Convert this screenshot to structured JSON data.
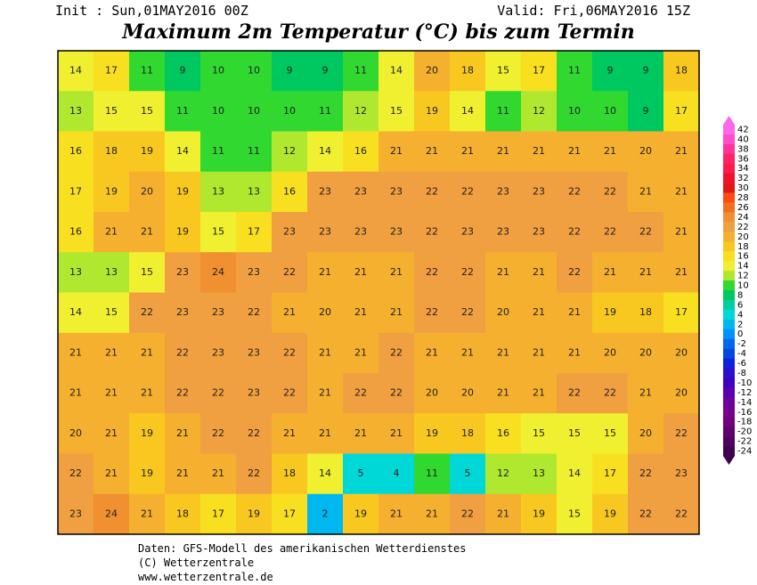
{
  "header": {
    "init": "Init : Sun,01MAY2016 00Z",
    "valid": "Valid: Fri,06MAY2016 15Z",
    "title": "Maximum 2m Temperatur (°C) bis zum Termin"
  },
  "map": {
    "rows": [
      [
        14,
        17,
        11,
        9,
        10,
        10,
        9,
        9,
        11,
        14,
        20,
        18,
        15,
        17,
        11,
        9,
        9,
        18
      ],
      [
        13,
        15,
        15,
        11,
        10,
        10,
        10,
        11,
        12,
        15,
        19,
        14,
        11,
        12,
        10,
        10,
        9,
        17
      ],
      [
        16,
        18,
        19,
        14,
        11,
        11,
        12,
        14,
        16,
        21,
        21,
        21,
        21,
        21,
        21,
        21,
        20,
        21
      ],
      [
        17,
        19,
        20,
        19,
        13,
        13,
        16,
        23,
        23,
        23,
        22,
        22,
        23,
        23,
        22,
        22,
        21,
        21
      ],
      [
        16,
        21,
        21,
        19,
        15,
        17,
        23,
        23,
        23,
        23,
        22,
        23,
        23,
        23,
        22,
        22,
        22,
        21
      ],
      [
        13,
        13,
        15,
        23,
        24,
        23,
        22,
        21,
        21,
        21,
        22,
        22,
        21,
        21,
        22,
        21,
        21,
        21
      ],
      [
        14,
        15,
        22,
        23,
        23,
        22,
        21,
        20,
        21,
        21,
        22,
        22,
        20,
        21,
        21,
        19,
        18,
        17
      ],
      [
        21,
        21,
        21,
        22,
        23,
        23,
        22,
        21,
        21,
        22,
        21,
        21,
        21,
        21,
        21,
        20,
        20,
        20
      ],
      [
        21,
        21,
        21,
        22,
        22,
        23,
        22,
        21,
        22,
        22,
        20,
        20,
        21,
        21,
        22,
        22,
        21,
        20
      ],
      [
        20,
        21,
        19,
        21,
        22,
        22,
        21,
        21,
        21,
        21,
        19,
        18,
        16,
        15,
        15,
        15,
        20,
        22
      ],
      [
        22,
        21,
        19,
        21,
        21,
        22,
        18,
        14,
        5,
        4,
        11,
        5,
        12,
        13,
        14,
        17,
        22,
        23
      ],
      [
        23,
        24,
        21,
        18,
        17,
        19,
        17,
        2,
        19,
        21,
        21,
        22,
        21,
        19,
        15,
        19,
        22,
        22
      ]
    ]
  },
  "colorbar": {
    "levels": [
      42,
      40,
      38,
      36,
      34,
      32,
      30,
      28,
      26,
      24,
      22,
      20,
      18,
      16,
      14,
      12,
      10,
      8,
      6,
      4,
      2,
      0,
      -2,
      -4,
      -6,
      -8,
      -10,
      -12,
      -14,
      -16,
      -18,
      -20,
      -22,
      -24
    ],
    "colors": [
      "#ff66ee",
      "#ff4dcc",
      "#ff3399",
      "#ff2266",
      "#ff1a4d",
      "#f01030",
      "#e01818",
      "#ff4a10",
      "#f07020",
      "#f09030",
      "#f0a040",
      "#f5b030",
      "#f8c820",
      "#f8e020",
      "#f0f030",
      "#b0e830",
      "#30d830",
      "#00c860",
      "#00d0a0",
      "#00d8d8",
      "#00b8f0",
      "#0090ff",
      "#0068f0",
      "#0048e0",
      "#1020e0",
      "#2a10d0",
      "#4000c0",
      "#5a00b0",
      "#6e00a0",
      "#7a0090",
      "#700080",
      "#600070",
      "#500060",
      "#400050"
    ]
  },
  "footer": {
    "line1": "Daten: GFS-Modell des amerikanischen Wetterdienstes",
    "line2": "(C) Wetterzentrale",
    "line3": "www.wetterzentrale.de"
  }
}
